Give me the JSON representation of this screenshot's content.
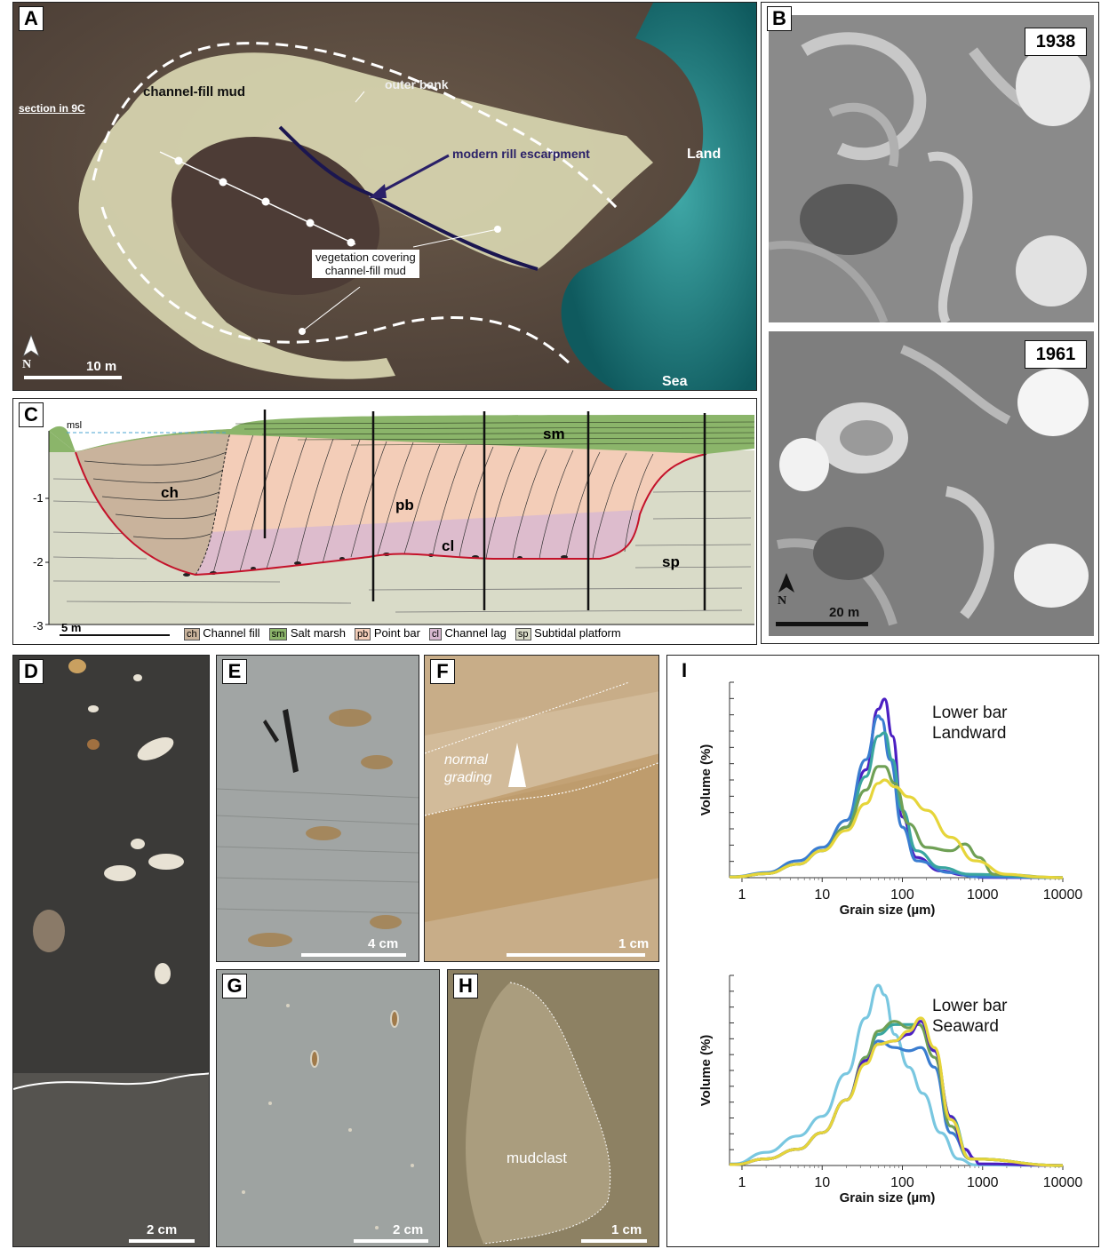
{
  "panels": {
    "A": {
      "label": "A",
      "channel_fill_mud": "channel-fill mud",
      "outer_bank": "outer bank",
      "section_ref": "section in 9C",
      "modern_rill": "modern rill escarpment",
      "land": "Land",
      "sea": "Sea",
      "vegetation_line1": "vegetation covering",
      "vegetation_line2": "channel-fill mud",
      "north": "N",
      "scale": "10 m"
    },
    "B": {
      "label": "B",
      "year1": "1938",
      "year2": "1961",
      "north": "N",
      "scale": "20 m"
    },
    "C": {
      "label": "C",
      "msl": "msl",
      "depth_ticks": [
        "-1",
        "-2",
        "-3"
      ],
      "units": {
        "ch": "ch",
        "pb": "pb",
        "cl": "cl",
        "sm": "sm",
        "sp": "sp"
      },
      "scale": "5 m",
      "legend": [
        {
          "abbr": "ch",
          "text": "Channel fill",
          "color": "#c9b39c"
        },
        {
          "abbr": "sm",
          "text": "Salt marsh",
          "color": "#8bb56a"
        },
        {
          "abbr": "pb",
          "text": "Point bar",
          "color": "#f3cdb8"
        },
        {
          "abbr": "cl",
          "text": "Channel lag",
          "color": "#d8b8d0"
        },
        {
          "abbr": "sp",
          "text": "Subtidal platform",
          "color": "#d9dbc8"
        }
      ]
    },
    "D": {
      "label": "D",
      "scale": "2 cm"
    },
    "E": {
      "label": "E",
      "scale": "4 cm"
    },
    "F": {
      "label": "F",
      "annotation_line1": "normal",
      "annotation_line2": "grading",
      "scale": "1 cm"
    },
    "G": {
      "label": "G",
      "scale": "2 cm"
    },
    "H": {
      "label": "H",
      "annotation": "mudclast",
      "scale": "1 cm"
    },
    "I": {
      "label": "I"
    }
  },
  "chart_data": [
    {
      "type": "line",
      "title": "Lower bar Landward",
      "xlabel": "Grain size (µm)",
      "ylabel": "Volume (%)",
      "xscale": "log",
      "xlim": [
        0.7,
        10000
      ],
      "xticks": [
        "1",
        "10",
        "100",
        "1000",
        "10000"
      ],
      "series": [
        {
          "color": "#4b1fc2",
          "points": [
            [
              0.8,
              0.2
            ],
            [
              2,
              1.2
            ],
            [
              5,
              4
            ],
            [
              10,
              8
            ],
            [
              20,
              15
            ],
            [
              35,
              32
            ],
            [
              50,
              50
            ],
            [
              60,
              53
            ],
            [
              75,
              42
            ],
            [
              100,
              18
            ],
            [
              150,
              6
            ],
            [
              300,
              2
            ],
            [
              600,
              0.8
            ],
            [
              1000,
              0.1
            ]
          ]
        },
        {
          "color": "#3a7dd0",
          "points": [
            [
              0.8,
              0.3
            ],
            [
              2,
              1.5
            ],
            [
              5,
              5
            ],
            [
              10,
              9
            ],
            [
              20,
              17
            ],
            [
              35,
              35
            ],
            [
              50,
              48
            ],
            [
              55,
              47
            ],
            [
              70,
              35
            ],
            [
              100,
              15
            ],
            [
              150,
              5
            ],
            [
              400,
              1.5
            ],
            [
              800,
              0.3
            ]
          ]
        },
        {
          "color": "#3aa6a0",
          "points": [
            [
              0.8,
              0.2
            ],
            [
              2,
              1.2
            ],
            [
              5,
              4
            ],
            [
              10,
              8
            ],
            [
              20,
              15
            ],
            [
              35,
              30
            ],
            [
              50,
              42
            ],
            [
              60,
              43
            ],
            [
              75,
              35
            ],
            [
              100,
              20
            ],
            [
              150,
              8
            ],
            [
              300,
              3
            ],
            [
              700,
              1
            ]
          ]
        },
        {
          "color": "#6fa055",
          "points": [
            [
              0.8,
              0.2
            ],
            [
              2,
              1.2
            ],
            [
              5,
              4
            ],
            [
              10,
              8
            ],
            [
              20,
              15
            ],
            [
              35,
              26
            ],
            [
              50,
              33
            ],
            [
              60,
              33
            ],
            [
              80,
              28
            ],
            [
              120,
              16
            ],
            [
              200,
              9
            ],
            [
              400,
              8
            ],
            [
              600,
              10
            ],
            [
              900,
              6
            ],
            [
              1400,
              1
            ]
          ]
        },
        {
          "color": "#e6d53a",
          "points": [
            [
              0.8,
              0.2
            ],
            [
              2,
              1.2
            ],
            [
              5,
              4
            ],
            [
              10,
              8
            ],
            [
              20,
              14
            ],
            [
              35,
              22
            ],
            [
              50,
              28
            ],
            [
              60,
              29
            ],
            [
              80,
              27
            ],
            [
              120,
              24
            ],
            [
              200,
              20
            ],
            [
              400,
              12
            ],
            [
              800,
              5
            ],
            [
              2000,
              1
            ],
            [
              5000,
              0.2
            ]
          ]
        }
      ]
    },
    {
      "type": "line",
      "title": "Lower bar Seaward",
      "xlabel": "Grain size (µm)",
      "ylabel": "Volume (%)",
      "xscale": "log",
      "xlim": [
        0.7,
        10000
      ],
      "xticks": [
        "1",
        "10",
        "100",
        "1000",
        "10000"
      ],
      "series": [
        {
          "color": "#79c7e0",
          "points": [
            [
              0.8,
              0.5
            ],
            [
              2,
              4
            ],
            [
              5,
              9
            ],
            [
              10,
              15
            ],
            [
              20,
              28
            ],
            [
              35,
              45
            ],
            [
              50,
              55
            ],
            [
              60,
              52
            ],
            [
              80,
              40
            ],
            [
              120,
              30
            ],
            [
              180,
              22
            ],
            [
              300,
              10
            ],
            [
              500,
              2
            ],
            [
              800,
              0.2
            ]
          ]
        },
        {
          "color": "#3a7dd0",
          "points": [
            [
              0.8,
              0.3
            ],
            [
              2,
              2
            ],
            [
              5,
              5
            ],
            [
              10,
              10
            ],
            [
              20,
              20
            ],
            [
              35,
              32
            ],
            [
              50,
              38
            ],
            [
              80,
              36
            ],
            [
              120,
              35
            ],
            [
              170,
              36
            ],
            [
              250,
              30
            ],
            [
              400,
              10
            ],
            [
              700,
              2
            ]
          ]
        },
        {
          "color": "#3aa6a0",
          "points": [
            [
              0.8,
              0.3
            ],
            [
              2,
              2
            ],
            [
              5,
              5
            ],
            [
              10,
              10
            ],
            [
              20,
              20
            ],
            [
              35,
              33
            ],
            [
              50,
              40
            ],
            [
              80,
              43
            ],
            [
              120,
              43
            ],
            [
              160,
              43
            ],
            [
              250,
              35
            ],
            [
              400,
              15
            ],
            [
              700,
              2
            ]
          ]
        },
        {
          "color": "#6fa055",
          "points": [
            [
              0.8,
              0.3
            ],
            [
              2,
              2
            ],
            [
              5,
              5
            ],
            [
              10,
              10
            ],
            [
              20,
              20
            ],
            [
              35,
              33
            ],
            [
              50,
              41
            ],
            [
              80,
              44
            ],
            [
              120,
              42
            ],
            [
              160,
              43
            ],
            [
              250,
              33
            ],
            [
              400,
              12
            ],
            [
              700,
              2
            ]
          ]
        },
        {
          "color": "#4b1fc2",
          "points": [
            [
              0.8,
              0.3
            ],
            [
              2,
              2
            ],
            [
              5,
              5
            ],
            [
              10,
              10
            ],
            [
              20,
              20
            ],
            [
              35,
              32
            ],
            [
              50,
              37
            ],
            [
              80,
              38
            ],
            [
              120,
              40
            ],
            [
              170,
              44
            ],
            [
              250,
              35
            ],
            [
              400,
              15
            ],
            [
              600,
              5
            ],
            [
              800,
              2
            ],
            [
              900,
              0.5
            ]
          ]
        },
        {
          "color": "#e6d53a",
          "points": [
            [
              0.8,
              0.3
            ],
            [
              2,
              2
            ],
            [
              5,
              5
            ],
            [
              10,
              10
            ],
            [
              20,
              20
            ],
            [
              35,
              31
            ],
            [
              50,
              37
            ],
            [
              80,
              38
            ],
            [
              120,
              41
            ],
            [
              170,
              45
            ],
            [
              250,
              36
            ],
            [
              400,
              14
            ],
            [
              700,
              2
            ]
          ]
        }
      ]
    }
  ]
}
